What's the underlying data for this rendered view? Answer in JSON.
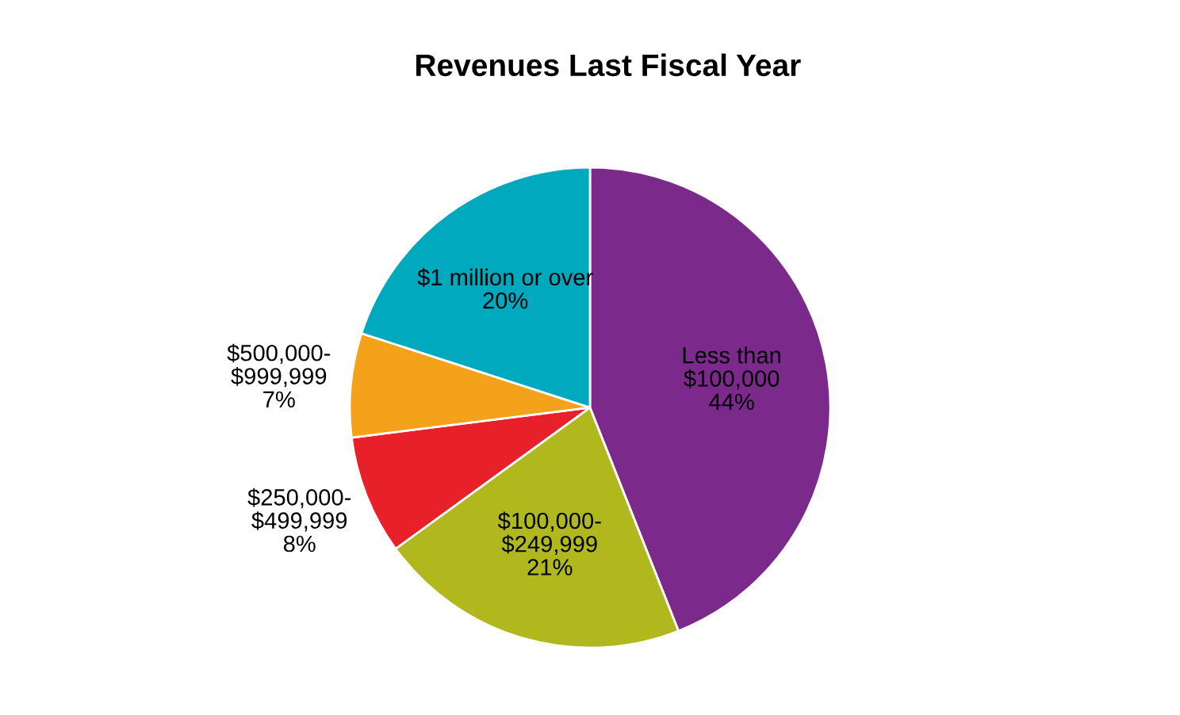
{
  "chart_data": {
    "type": "pie",
    "title": "Revenues Last Fiscal Year",
    "categories": [
      "Less than\n$100,000",
      "$100,000-\n$249,999",
      "$250,000-\n$499,999",
      "$500,000-\n$999,999",
      "$1 million or over"
    ],
    "values": [
      44,
      21,
      8,
      7,
      20
    ],
    "colors": [
      "#7b2a8c",
      "#b0b81e",
      "#e8202a",
      "#f5a21b",
      "#00a9be"
    ],
    "value_labels": [
      "44%",
      "21%",
      "8%",
      "7%",
      "20%"
    ],
    "legend": false
  }
}
